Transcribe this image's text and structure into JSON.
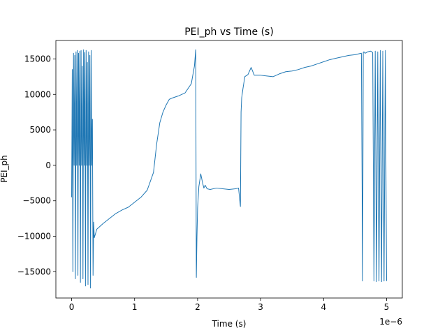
{
  "chart_data": {
    "type": "line",
    "title": "PEI_ph vs Time (s)",
    "xlabel": "Time (s)",
    "ylabel": "PEI_ph",
    "x_offset_label": "1e−6",
    "x_scale_factor": 1e-06,
    "xlim": [
      -0.25,
      5.25
    ],
    "ylim": [
      -18700,
      17600
    ],
    "x_ticks": [
      0,
      1,
      2,
      3,
      4,
      5
    ],
    "x_tick_labels": [
      "0",
      "1",
      "2",
      "3",
      "4",
      "5"
    ],
    "y_ticks": [
      -15000,
      -10000,
      -5000,
      0,
      5000,
      10000,
      15000
    ],
    "y_tick_labels": [
      "−15000",
      "−10000",
      "−5000",
      "0",
      "5000",
      "10000",
      "15000"
    ],
    "grid": false,
    "legend": "none",
    "series": [
      {
        "color": "#1f77b4",
        "x": [
          0,
          0.01,
          0.02,
          0.03,
          0.04,
          0.05,
          0.06,
          0.07,
          0.08,
          0.09,
          0.1,
          0.11,
          0.12,
          0.13,
          0.14,
          0.15,
          0.16,
          0.17,
          0.18,
          0.19,
          0.2,
          0.21,
          0.22,
          0.23,
          0.24,
          0.25,
          0.26,
          0.27,
          0.28,
          0.29,
          0.3,
          0.31,
          0.32,
          0.33,
          0.34,
          0.35,
          0.36,
          0.4,
          0.5,
          0.6,
          0.7,
          0.8,
          0.9,
          1.0,
          1.1,
          1.2,
          1.3,
          1.35,
          1.4,
          1.45,
          1.5,
          1.55,
          1.6,
          1.7,
          1.8,
          1.9,
          1.95,
          1.97,
          1.98,
          1.99,
          2.0,
          2.02,
          2.05,
          2.08,
          2.1,
          2.12,
          2.15,
          2.2,
          2.3,
          2.4,
          2.5,
          2.6,
          2.65,
          2.68,
          2.69,
          2.7,
          2.72,
          2.75,
          2.8,
          2.85,
          2.9,
          3.0,
          3.1,
          3.2,
          3.3,
          3.4,
          3.5,
          3.6,
          3.7,
          3.8,
          3.9,
          4.0,
          4.1,
          4.2,
          4.3,
          4.4,
          4.5,
          4.6,
          4.62,
          4.63,
          4.64,
          4.66,
          4.7,
          4.75,
          4.78,
          4.8,
          4.82,
          4.84,
          4.86,
          4.88,
          4.9,
          4.92,
          4.94,
          4.96,
          4.98,
          5.0
        ],
        "y": [
          -4500,
          13500,
          -15000,
          15800,
          0,
          15500,
          -16000,
          16000,
          0,
          16200,
          -15500,
          15800,
          0,
          16100,
          -16500,
          16200,
          0,
          14000,
          -16000,
          16300,
          0,
          15900,
          -17000,
          16200,
          0,
          14500,
          -16800,
          16000,
          0,
          15500,
          -17300,
          16200,
          0,
          6500,
          -15500,
          -8000,
          -10200,
          -9000,
          -8200,
          -7500,
          -6800,
          -6300,
          -5900,
          -5200,
          -4500,
          -3500,
          -1000,
          3000,
          6000,
          7500,
          8500,
          9300,
          9500,
          9800,
          10200,
          11500,
          14000,
          16300,
          -15800,
          -10000,
          -6000,
          -3000,
          -1200,
          -2500,
          -3200,
          -2800,
          -3300,
          -3400,
          -3200,
          -3300,
          -3400,
          -3300,
          -3200,
          -5800,
          7500,
          9500,
          10800,
          12500,
          12800,
          13800,
          12700,
          12700,
          12600,
          12500,
          12900,
          13200,
          13300,
          13500,
          13800,
          14000,
          14300,
          14600,
          14900,
          15100,
          15300,
          15500,
          15600,
          15800,
          -16300,
          15900,
          16000,
          15800,
          16000,
          16100,
          15900,
          -16300,
          16100,
          -16400,
          16000,
          -16300,
          16200,
          -16400,
          16100,
          -16300,
          16200,
          -16300
        ]
      }
    ]
  }
}
